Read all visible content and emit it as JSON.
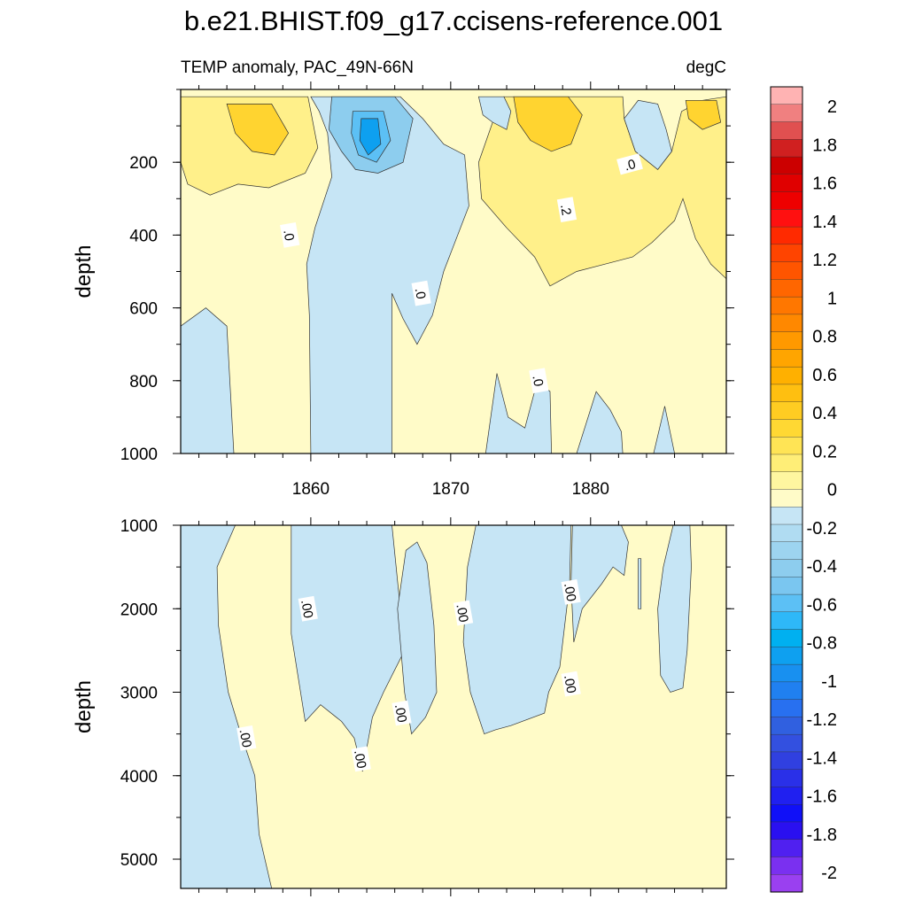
{
  "title": "b.e21.BHIST.f09_g17.ccisens-reference.001",
  "subtitle_left": "TEMP anomaly, PAC_49N-66N",
  "subtitle_right": "degC",
  "chart_data": [
    {
      "type": "contour",
      "panel": "upper",
      "ylabel": "depth",
      "xlabel": "",
      "ylim": [
        1000,
        0
      ],
      "y_ticks": [
        "200",
        "400",
        "600",
        "800",
        "1000"
      ],
      "x_ticks": [
        "1860",
        "1870",
        "1880"
      ],
      "xlim": [
        1850.7,
        1889.7
      ],
      "contour_labels": [
        ".0",
        ".0",
        ".2",
        ".0",
        ".0"
      ],
      "regions_negative": [
        {
          "name": "deep-west",
          "points": [
            [
              1850.7,
              650
            ],
            [
              1852.5,
              600
            ],
            [
              1854,
              650
            ],
            [
              1854.5,
              1000
            ],
            [
              1850.7,
              1000
            ]
          ]
        },
        {
          "name": "central",
          "points": [
            [
              1860.0,
              20
            ],
            [
              1866.4,
              20
            ],
            [
              1868.0,
              80
            ],
            [
              1869.5,
              150
            ],
            [
              1871.0,
              180
            ],
            [
              1871.3,
              320
            ],
            [
              1869.5,
              500
            ],
            [
              1868.7,
              620
            ],
            [
              1867.6,
              700
            ],
            [
              1866.6,
              630
            ],
            [
              1865.8,
              560
            ],
            [
              1865.8,
              1000
            ],
            [
              1860.0,
              1000
            ],
            [
              1859.9,
              620
            ],
            [
              1859.7,
              480
            ],
            [
              1860.3,
              380
            ],
            [
              1861.5,
              240
            ],
            [
              1861.2,
              120
            ],
            [
              1860.6,
              60
            ]
          ]
        },
        {
          "name": "deep-east-1",
          "points": [
            [
              1872.5,
              1000
            ],
            [
              1873.3,
              780
            ],
            [
              1874.1,
              900
            ],
            [
              1875.3,
              930
            ],
            [
              1876.2,
              800
            ],
            [
              1877.1,
              830
            ],
            [
              1877.2,
              1000
            ]
          ]
        },
        {
          "name": "deep-east-2",
          "points": [
            [
              1879.0,
              1000
            ],
            [
              1880.4,
              830
            ],
            [
              1881.4,
              880
            ],
            [
              1882.2,
              940
            ],
            [
              1882.3,
              1000
            ]
          ]
        },
        {
          "name": "deep-east-3",
          "points": [
            [
              1884.5,
              1000
            ],
            [
              1885.3,
              870
            ],
            [
              1886.0,
              1000
            ]
          ]
        },
        {
          "name": "surface-east",
          "points": [
            [
              1872.0,
              20
            ],
            [
              1873.8,
              20
            ],
            [
              1874.3,
              60
            ],
            [
              1874.0,
              110
            ],
            [
              1873.0,
              90
            ],
            [
              1872.3,
              70
            ]
          ]
        },
        {
          "name": "surface-far-east",
          "points": [
            [
              1882.4,
              80
            ],
            [
              1883.4,
              30
            ],
            [
              1884.8,
              40
            ],
            [
              1885.4,
              110
            ],
            [
              1885.8,
              170
            ],
            [
              1884.8,
              220
            ],
            [
              1883.2,
              170
            ]
          ]
        }
      ],
      "regions_warm": [
        {
          "name": "west-surface",
          "level": 0.2,
          "points": [
            [
              1850.7,
              20
            ],
            [
              1859.8,
              20
            ],
            [
              1860.5,
              160
            ],
            [
              1859.6,
              230
            ],
            [
              1857.0,
              270
            ],
            [
              1854.8,
              260
            ],
            [
              1852.8,
              290
            ],
            [
              1851.2,
              260
            ],
            [
              1850.7,
              200
            ]
          ]
        },
        {
          "name": "east-surface",
          "level": 0.2,
          "points": [
            [
              1873.8,
              20
            ],
            [
              1882.3,
              20
            ],
            [
              1882.4,
              80
            ],
            [
              1883.2,
              170
            ],
            [
              1884.8,
              220
            ],
            [
              1885.8,
              170
            ],
            [
              1886.5,
              60
            ],
            [
              1888.0,
              30
            ],
            [
              1889.7,
              20
            ],
            [
              1889.7,
              520
            ],
            [
              1888.6,
              480
            ],
            [
              1887.5,
              410
            ],
            [
              1886.6,
              300
            ],
            [
              1886.0,
              360
            ],
            [
              1884.4,
              420
            ],
            [
              1883.0,
              460
            ],
            [
              1881.0,
              480
            ],
            [
              1879.0,
              500
            ],
            [
              1877.1,
              540
            ],
            [
              1876.0,
              460
            ],
            [
              1874.0,
              380
            ],
            [
              1872.2,
              300
            ],
            [
              1872.0,
              200
            ],
            [
              1873.0,
              90
            ]
          ]
        }
      ],
      "regions_warm2": [
        {
          "name": "west-core",
          "level": 0.4,
          "points": [
            [
              1854.0,
              40
            ],
            [
              1857.2,
              40
            ],
            [
              1858.4,
              120
            ],
            [
              1857.4,
              180
            ],
            [
              1855.8,
              170
            ],
            [
              1854.6,
              120
            ]
          ]
        },
        {
          "name": "east-core",
          "level": 0.4,
          "points": [
            [
              1874.5,
              20
            ],
            [
              1878.4,
              20
            ],
            [
              1879.4,
              70
            ],
            [
              1878.6,
              150
            ],
            [
              1877.2,
              170
            ],
            [
              1875.7,
              140
            ],
            [
              1874.8,
              90
            ]
          ]
        },
        {
          "name": "east-core-2",
          "level": 0.4,
          "points": [
            [
              1886.8,
              30
            ],
            [
              1889.0,
              30
            ],
            [
              1889.3,
              90
            ],
            [
              1888.0,
              110
            ],
            [
              1887.0,
              80
            ]
          ]
        }
      ],
      "regions_cold2": [
        {
          "name": "central-core",
          "level": -0.4,
          "points": [
            [
              1861.5,
              20
            ],
            [
              1866.0,
              20
            ],
            [
              1867.3,
              80
            ],
            [
              1866.6,
              200
            ],
            [
              1864.8,
              230
            ],
            [
              1863.2,
              220
            ],
            [
              1862.2,
              170
            ],
            [
              1861.3,
              110
            ]
          ]
        },
        {
          "name": "central-core-2",
          "level": -0.6,
          "points": [
            [
              1863.0,
              60
            ],
            [
              1865.2,
              60
            ],
            [
              1865.7,
              140
            ],
            [
              1864.7,
              200
            ],
            [
              1863.4,
              180
            ],
            [
              1862.9,
              120
            ]
          ]
        },
        {
          "name": "central-core-3",
          "level": -0.8,
          "points": [
            [
              1863.6,
              80
            ],
            [
              1864.8,
              80
            ],
            [
              1865.0,
              150
            ],
            [
              1864.1,
              180
            ],
            [
              1863.5,
              140
            ]
          ]
        }
      ]
    },
    {
      "type": "contour",
      "panel": "lower",
      "ylabel": "depth",
      "xlabel": "",
      "ylim": [
        1000,
        5350
      ],
      "y_ticks": [
        "1000",
        "2000",
        "3000",
        "4000",
        "5000"
      ],
      "xlim": [
        1850.7,
        1889.7
      ],
      "contour_labels": [
        ".00",
        ".00",
        ".00",
        ".00",
        ".00",
        ".00",
        ".00"
      ],
      "regions_negative": [
        {
          "name": "west-wedge",
          "points": [
            [
              1850.7,
              1000
            ],
            [
              1854.6,
              1000
            ],
            [
              1853.3,
              1500
            ],
            [
              1853.4,
              2200
            ],
            [
              1854.1,
              3000
            ],
            [
              1855.0,
              3500
            ],
            [
              1856.0,
              4000
            ],
            [
              1856.3,
              4700
            ],
            [
              1857.2,
              5350
            ],
            [
              1850.7,
              5350
            ]
          ]
        },
        {
          "name": "central-1",
          "points": [
            [
              1858.6,
              1000
            ],
            [
              1865.8,
              1000
            ],
            [
              1866.7,
              2500
            ],
            [
              1865.2,
              3000
            ],
            [
              1864.4,
              3300
            ],
            [
              1863.7,
              3950
            ],
            [
              1863.1,
              3550
            ],
            [
              1862.2,
              3350
            ],
            [
              1860.7,
              3150
            ],
            [
              1859.6,
              3350
            ],
            [
              1858.6,
              2300
            ]
          ]
        },
        {
          "name": "central-2",
          "points": [
            [
              1866.8,
              1300
            ],
            [
              1867.6,
              1200
            ],
            [
              1868.3,
              1450
            ],
            [
              1868.8,
              2200
            ],
            [
              1869.0,
              3000
            ],
            [
              1868.2,
              3300
            ],
            [
              1867.2,
              3500
            ],
            [
              1866.7,
              3000
            ],
            [
              1866.2,
              2000
            ]
          ]
        },
        {
          "name": "east-1",
          "points": [
            [
              1871.8,
              1000
            ],
            [
              1878.6,
              1000
            ],
            [
              1878.5,
              1700
            ],
            [
              1877.8,
              2700
            ],
            [
              1877.0,
              3000
            ],
            [
              1876.7,
              3250
            ],
            [
              1874.3,
              3400
            ],
            [
              1873.2,
              3450
            ],
            [
              1872.4,
              3500
            ],
            [
              1871.4,
              3000
            ],
            [
              1870.9,
              2400
            ],
            [
              1871.2,
              1500
            ]
          ]
        },
        {
          "name": "east-2",
          "points": [
            [
              1878.7,
              1000
            ],
            [
              1882.2,
              1000
            ],
            [
              1882.7,
              1200
            ],
            [
              1882.4,
              1600
            ],
            [
              1881.6,
              1500
            ],
            [
              1880.8,
              1700
            ],
            [
              1879.4,
              2000
            ],
            [
              1878.8,
              2400
            ],
            [
              1878.6,
              1700
            ]
          ]
        },
        {
          "name": "east-3",
          "points": [
            [
              1883.4,
              1400
            ],
            [
              1883.6,
              1400
            ],
            [
              1883.6,
              2000
            ],
            [
              1883.4,
              2000
            ]
          ]
        },
        {
          "name": "east-4",
          "points": [
            [
              1885.9,
              1000
            ],
            [
              1887.1,
              1000
            ],
            [
              1887.2,
              1500
            ],
            [
              1886.9,
              2500
            ],
            [
              1886.6,
              2950
            ],
            [
              1885.7,
              3000
            ],
            [
              1885.0,
              2800
            ],
            [
              1884.8,
              2000
            ],
            [
              1885.2,
              1500
            ]
          ]
        }
      ]
    }
  ],
  "colorbar": {
    "labels": [
      "2",
      "1.8",
      "1.6",
      "1.4",
      "1.2",
      "1",
      "0.8",
      "0.6",
      "0.4",
      "0.2",
      "0",
      "-0.2",
      "-0.4",
      "-0.6",
      "-0.8",
      "-1",
      "-1.2",
      "-1.4",
      "-1.6",
      "-1.8",
      "-2"
    ],
    "colors_top_to_bottom": [
      "#ffb3b3",
      "#f08080",
      "#e05050",
      "#d02020",
      "#cc0000",
      "#e00000",
      "#ee0000",
      "#ff1010",
      "#ff2a00",
      "#ff4400",
      "#ff5500",
      "#ff6600",
      "#ff7700",
      "#ff8800",
      "#ff9900",
      "#ffa500",
      "#ffb000",
      "#ffbf10",
      "#ffcc22",
      "#ffd833",
      "#ffe455",
      "#ffee77",
      "#fff6a0",
      "#fffbc8",
      "#c6e5f5",
      "#b0dcf2",
      "#9dd4f0",
      "#8dcdee",
      "#7ac6f0",
      "#5cc0f5",
      "#2eb8f8",
      "#00b0f0",
      "#0ea0f0",
      "#1890f0",
      "#2080f0",
      "#2870f0",
      "#3060e0",
      "#3350e0",
      "#3040e0",
      "#2a30e8",
      "#2020f0",
      "#1010f8",
      "#2a10f0",
      "#5020f0",
      "#7a30f0",
      "#9a40f0"
    ]
  }
}
